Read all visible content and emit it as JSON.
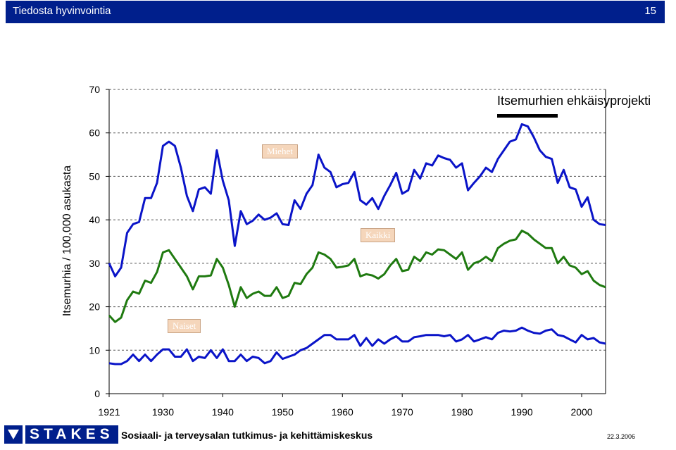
{
  "header": {
    "title": "Tiedosta hyvinvointia",
    "page": "15"
  },
  "project": "Itsemurhien ehkäisyprojekti",
  "footer": {
    "logo": "STAKES",
    "org": "Sosiaali- ja terveysalan tutkimus- ja kehittämiskeskus",
    "date": "22.3.2006"
  },
  "colors": {
    "header": "#001f8c",
    "men": "#0a14c8",
    "all": "#1f7a10",
    "women": "#0a14c8",
    "label_bg": "#f5d6bb"
  },
  "chart_data": {
    "type": "line",
    "title": "",
    "ylabel": "Itsemurhia / 100,000 asukasta",
    "xlabel": "",
    "ylim": [
      0,
      70
    ],
    "yticks": [
      "0",
      "10",
      "20",
      "30",
      "40",
      "50",
      "60",
      "70"
    ],
    "xlim": [
      1921,
      2004
    ],
    "xticks": [
      "1921",
      "1930",
      "1940",
      "1950",
      "1960",
      "1970",
      "1980",
      "1990",
      "2000"
    ],
    "grid": "horizontal dashed",
    "x": [
      1921,
      1922,
      1923,
      1924,
      1925,
      1926,
      1927,
      1928,
      1929,
      1930,
      1931,
      1932,
      1933,
      1934,
      1935,
      1936,
      1937,
      1938,
      1939,
      1940,
      1941,
      1942,
      1943,
      1944,
      1945,
      1946,
      1947,
      1948,
      1949,
      1950,
      1951,
      1952,
      1953,
      1954,
      1955,
      1956,
      1957,
      1958,
      1959,
      1960,
      1961,
      1962,
      1963,
      1964,
      1965,
      1966,
      1967,
      1968,
      1969,
      1970,
      1971,
      1972,
      1973,
      1974,
      1975,
      1976,
      1977,
      1978,
      1979,
      1980,
      1981,
      1982,
      1983,
      1984,
      1985,
      1986,
      1987,
      1988,
      1989,
      1990,
      1991,
      1992,
      1993,
      1994,
      1995,
      1996,
      1997,
      1998,
      1999,
      2000,
      2001,
      2002,
      2003,
      2004
    ],
    "series": [
      {
        "name": "Miehet",
        "values": [
          30.0,
          27.0,
          29.0,
          37.0,
          39.0,
          39.5,
          45.0,
          45.0,
          48.5,
          57.0,
          58.0,
          57.0,
          52.0,
          45.5,
          42.0,
          47.0,
          47.5,
          46.0,
          56.0,
          49.0,
          44.5,
          34.0,
          42.0,
          39.0,
          39.8,
          41.2,
          40.0,
          40.5,
          41.5,
          39.0,
          38.8,
          44.5,
          42.5,
          46.0,
          48.0,
          55.0,
          52.0,
          51.0,
          47.5,
          48.2,
          48.5,
          51.0,
          44.5,
          43.5,
          45.0,
          42.5,
          45.5,
          48.0,
          50.8,
          46.0,
          46.8,
          51.5,
          49.5,
          53.0,
          52.5,
          54.8,
          54.2,
          53.8,
          52.0,
          53.0,
          46.8,
          48.5,
          50.0,
          52.0,
          51.0,
          54.0,
          56.0,
          58.0,
          58.5,
          62.0,
          61.5,
          59.0,
          56.0,
          54.5,
          54.0,
          48.5,
          51.5,
          47.5,
          47.0,
          43.0,
          45.2,
          40.0,
          39.0,
          38.8
        ]
      },
      {
        "name": "Kaikki",
        "values": [
          18.0,
          16.5,
          17.5,
          21.5,
          23.5,
          23.0,
          26.0,
          25.5,
          28.0,
          32.5,
          33.0,
          31.0,
          29.0,
          27.0,
          24.0,
          27.0,
          27.0,
          27.2,
          31.0,
          29.0,
          25.0,
          20.0,
          24.5,
          22.0,
          23.0,
          23.5,
          22.5,
          22.5,
          24.5,
          22.0,
          22.5,
          25.5,
          25.2,
          27.5,
          29.0,
          32.5,
          32.0,
          31.0,
          29.0,
          29.2,
          29.5,
          31.0,
          27.0,
          27.5,
          27.2,
          26.5,
          27.5,
          29.5,
          31.0,
          28.2,
          28.5,
          31.5,
          30.5,
          32.5,
          32.0,
          33.2,
          33.0,
          32.0,
          31.0,
          32.5,
          28.5,
          30.0,
          30.5,
          31.5,
          30.5,
          33.5,
          34.5,
          35.2,
          35.5,
          37.5,
          36.8,
          35.5,
          34.5,
          33.5,
          33.5,
          30.0,
          31.5,
          29.5,
          29.0,
          27.5,
          28.2,
          26.0,
          25.0,
          24.5
        ]
      },
      {
        "name": "Naiset",
        "values": [
          7.0,
          6.8,
          6.8,
          7.5,
          9.0,
          7.5,
          9.0,
          7.5,
          9.0,
          10.2,
          10.2,
          8.5,
          8.5,
          10.2,
          7.5,
          8.5,
          8.2,
          10.0,
          8.2,
          10.2,
          7.5,
          7.5,
          9.0,
          7.5,
          8.5,
          8.2,
          7.0,
          7.5,
          9.5,
          8.0,
          8.5,
          9.0,
          10.0,
          10.5,
          11.5,
          12.5,
          13.5,
          13.5,
          12.5,
          12.5,
          12.5,
          13.5,
          11.0,
          12.8,
          11.0,
          12.5,
          11.5,
          12.5,
          13.2,
          12.0,
          12.0,
          13.0,
          13.2,
          13.5,
          13.5,
          13.5,
          13.2,
          13.5,
          12.0,
          12.5,
          13.5,
          12.0,
          12.5,
          13.0,
          12.5,
          14.0,
          14.5,
          14.3,
          14.5,
          15.2,
          14.5,
          14.0,
          13.8,
          14.5,
          14.8,
          13.5,
          13.2,
          12.5,
          11.8,
          13.5,
          12.5,
          12.8,
          11.8,
          11.5
        ]
      }
    ]
  }
}
